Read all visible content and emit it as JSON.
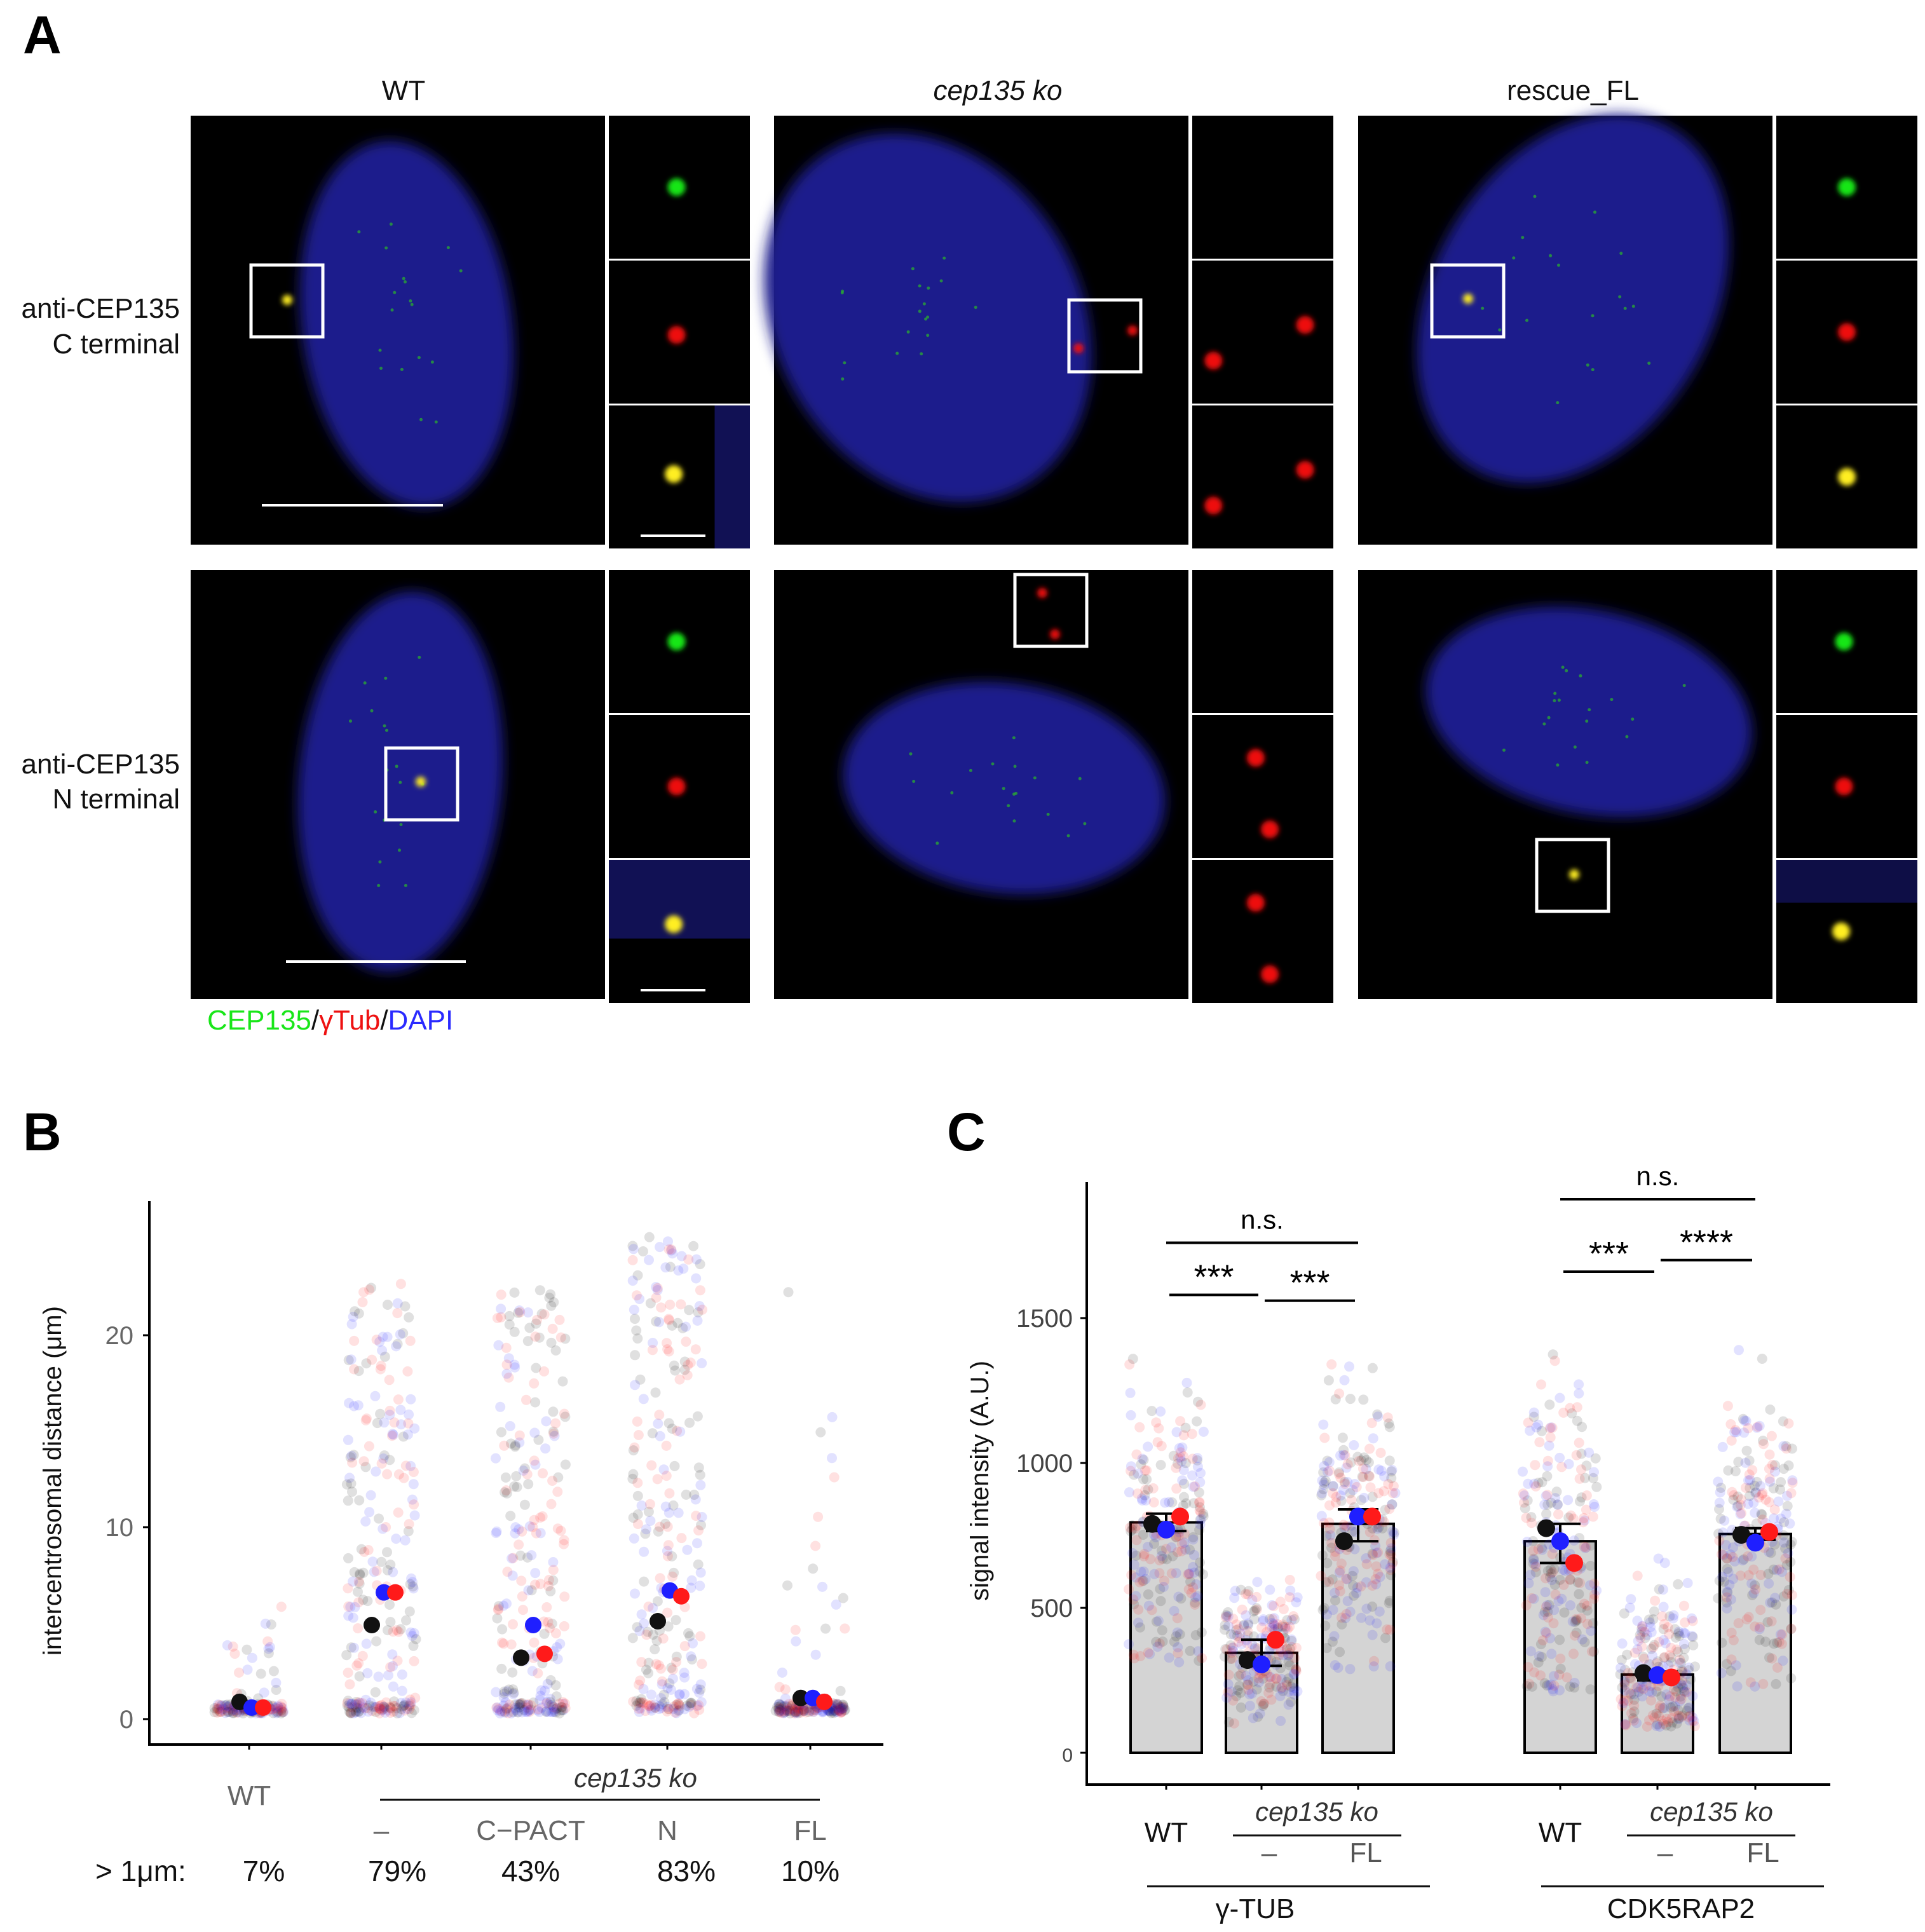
{
  "panel_labels": [
    "A",
    "B",
    "C"
  ],
  "panel_a": {
    "columns": [
      "WT",
      "cep135 ko",
      "rescue_FL"
    ],
    "rows": [
      {
        "line1": "anti-CEP135",
        "line2": "C terminal"
      },
      {
        "line1": "anti-CEP135",
        "line2": "N terminal"
      }
    ],
    "legend": {
      "cep135": "CEP135",
      "sep1": "/",
      "gtub": "γTub",
      "sep2": "/",
      "dapi": "DAPI"
    },
    "colors": {
      "cep135": "#19e619",
      "gtub": "#ee1111",
      "dapi": "#2a2aff",
      "nucleus": "#1c1c8c"
    }
  },
  "chart_data": [
    {
      "type": "scatter",
      "ylabel": "intercentrosomal distance (μm)",
      "yticks": [
        0,
        10,
        20
      ],
      "ylim": [
        -1,
        27
      ],
      "categories": [
        "WT",
        "–",
        "C−PACT",
        "N",
        "FL"
      ],
      "group_label": "cep135 ko",
      "summary_label": "> 1μm:",
      "summary_values": [
        "7%",
        "79%",
        "43%",
        "83%",
        "10%"
      ],
      "replicate_colors": [
        "#111111",
        "#1f1fff",
        "#ff1a1a"
      ],
      "replicate_means": [
        [
          0.9,
          0.6,
          0.6
        ],
        [
          4.9,
          6.6,
          6.6
        ],
        [
          3.2,
          4.9,
          3.4
        ],
        [
          5.1,
          6.7,
          6.4
        ],
        [
          1.1,
          1.1,
          0.9
        ]
      ],
      "jitter_spread": [
        [
          0.3,
          6.4
        ],
        [
          0.3,
          22.8
        ],
        [
          0.3,
          22.6
        ],
        [
          0.3,
          25.4
        ],
        [
          0.3,
          22.4
        ]
      ]
    },
    {
      "type": "bar",
      "ylabel": "signal intensity (A.U.)",
      "yticks": [
        0,
        500,
        1000,
        1500
      ],
      "ylim": [
        -60,
        1980
      ],
      "categories": [
        "WT",
        "–",
        "FL",
        "WT",
        "–",
        "FL"
      ],
      "group_label": "cep135 ko",
      "markers": [
        "γ-TUB",
        "CDK5RAP2"
      ],
      "values": [
        795,
        345,
        790,
        730,
        270,
        755
      ],
      "errors": [
        [
          765,
          825
        ],
        [
          300,
          390
        ],
        [
          730,
          840
        ],
        [
          655,
          790
        ],
        [
          250,
          280
        ],
        [
          735,
          775
        ]
      ],
      "replicate_colors": [
        "#111111",
        "#1f1fff",
        "#ff1a1a"
      ],
      "replicate_means": [
        [
          790,
          770,
          815
        ],
        [
          320,
          305,
          390
        ],
        [
          730,
          815,
          815
        ],
        [
          775,
          730,
          655
        ],
        [
          275,
          268,
          260
        ],
        [
          752,
          725,
          762
        ]
      ],
      "jitter_spread": [
        [
          310,
          1650
        ],
        [
          100,
          720
        ],
        [
          280,
          1500
        ],
        [
          210,
          1760
        ],
        [
          90,
          860
        ],
        [
          200,
          1600
        ]
      ],
      "significance": [
        {
          "label": "n.s.",
          "from": 0,
          "to": 2,
          "level": 1760
        },
        {
          "label": "***",
          "from": 0,
          "to": 1,
          "level": 1580
        },
        {
          "label": "***",
          "from": 1,
          "to": 2,
          "level": 1560
        },
        {
          "label": "n.s.",
          "from": 3,
          "to": 5,
          "level": 1910
        },
        {
          "label": "***",
          "from": 3,
          "to": 4,
          "level": 1660
        },
        {
          "label": "****",
          "from": 4,
          "to": 5,
          "level": 1700
        }
      ]
    }
  ]
}
